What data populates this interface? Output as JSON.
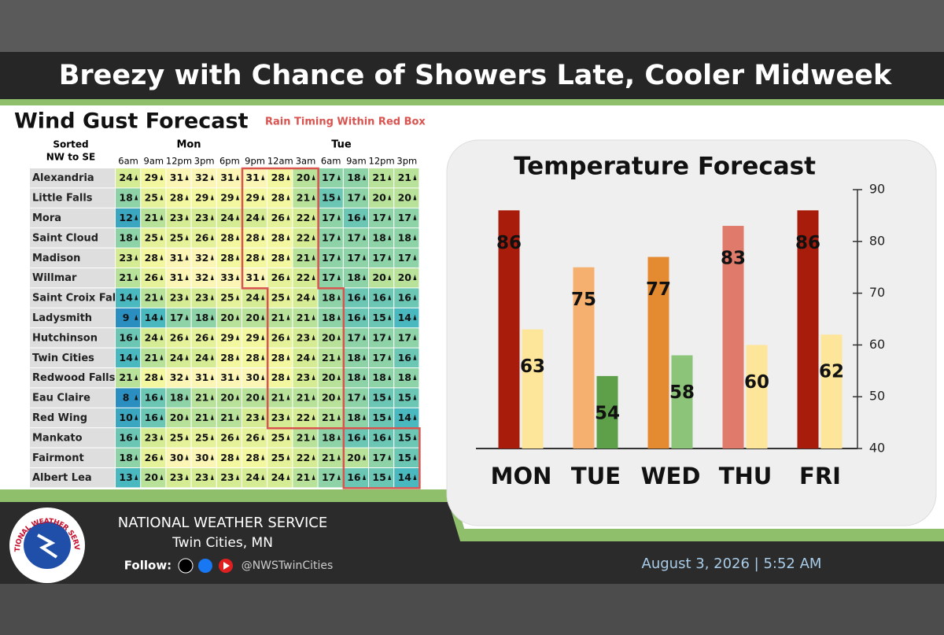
{
  "header": {
    "title": "Breezy with Chance of Showers Late, Cooler Midweek"
  },
  "wind_table": {
    "title": "Wind Gust Forecast",
    "note": "Rain Timing Within Red Box",
    "sort_label": [
      "Sorted",
      "NW to SE"
    ],
    "days": [
      "Mon",
      "Tue"
    ],
    "times": [
      "6am",
      "9am",
      "12pm",
      "3pm",
      "6pm",
      "9pm",
      "12am",
      "3am",
      "6am",
      "9am",
      "12pm",
      "3pm"
    ],
    "rows": [
      {
        "name": "Alexandria",
        "values": [
          24,
          29,
          31,
          32,
          31,
          31,
          28,
          20,
          17,
          18,
          21,
          21
        ]
      },
      {
        "name": "Little Falls",
        "values": [
          18,
          25,
          28,
          29,
          29,
          29,
          28,
          21,
          15,
          17,
          20,
          20
        ]
      },
      {
        "name": "Mora",
        "values": [
          12,
          21,
          23,
          23,
          24,
          24,
          26,
          22,
          17,
          16,
          17,
          17
        ]
      },
      {
        "name": "Saint Cloud",
        "values": [
          18,
          25,
          25,
          26,
          28,
          28,
          28,
          22,
          17,
          17,
          18,
          18
        ]
      },
      {
        "name": "Madison",
        "values": [
          23,
          28,
          31,
          32,
          28,
          28,
          28,
          21,
          17,
          17,
          17,
          17
        ]
      },
      {
        "name": "Willmar",
        "values": [
          21,
          26,
          31,
          32,
          33,
          31,
          26,
          22,
          17,
          18,
          20,
          20
        ]
      },
      {
        "name": "Saint Croix Falls",
        "values": [
          14,
          21,
          23,
          23,
          25,
          24,
          25,
          24,
          18,
          16,
          16,
          16
        ]
      },
      {
        "name": "Ladysmith",
        "values": [
          9,
          14,
          17,
          18,
          20,
          20,
          21,
          21,
          18,
          16,
          15,
          14
        ]
      },
      {
        "name": "Hutchinson",
        "values": [
          16,
          24,
          26,
          26,
          29,
          29,
          26,
          23,
          20,
          17,
          17,
          17
        ]
      },
      {
        "name": "Twin Cities",
        "values": [
          14,
          21,
          24,
          24,
          28,
          28,
          28,
          24,
          21,
          18,
          17,
          16
        ]
      },
      {
        "name": "Redwood Falls",
        "values": [
          21,
          28,
          32,
          31,
          31,
          30,
          28,
          23,
          20,
          18,
          18,
          18
        ]
      },
      {
        "name": "Eau Claire",
        "values": [
          8,
          16,
          18,
          21,
          20,
          20,
          21,
          21,
          20,
          17,
          15,
          15
        ]
      },
      {
        "name": "Red Wing",
        "values": [
          10,
          16,
          20,
          21,
          21,
          23,
          23,
          22,
          21,
          18,
          15,
          14
        ]
      },
      {
        "name": "Mankato",
        "values": [
          16,
          23,
          25,
          25,
          26,
          26,
          25,
          21,
          18,
          16,
          16,
          15
        ]
      },
      {
        "name": "Fairmont",
        "values": [
          18,
          26,
          30,
          30,
          28,
          28,
          25,
          22,
          21,
          20,
          17,
          15
        ]
      },
      {
        "name": "Albert Lea",
        "values": [
          13,
          20,
          23,
          23,
          23,
          24,
          24,
          21,
          17,
          16,
          15,
          14
        ]
      }
    ]
  },
  "chart_data": {
    "type": "bar",
    "title": "Temperature Forecast",
    "categories": [
      "MON",
      "TUE",
      "WED",
      "THU",
      "FRI"
    ],
    "series": [
      {
        "colors": [
          "#a81c0c",
          "#f5b070",
          "#e48a30",
          "#e07a6a",
          "#a81c0c"
        ],
        "values": [
          86,
          75,
          77,
          83,
          86
        ]
      },
      {
        "colors": [
          "#fde59a",
          "#5ea04a",
          "#8cc47a",
          "#fde59a",
          "#fde59a"
        ],
        "values": [
          63,
          54,
          58,
          60,
          62
        ]
      }
    ],
    "ylim": [
      40,
      90
    ],
    "yticks": [
      40,
      50,
      60,
      70,
      80,
      90
    ],
    "y_axis_side": "right"
  },
  "footer": {
    "logo_text": "NATIONAL WEATHER SERVICE",
    "org": "NATIONAL WEATHER SERVICE",
    "office": "Twin Cities, MN",
    "follow": "Follow:",
    "handle": "@NWSTwinCities",
    "timestamp": "August 3, 2026 | 5:52 AM"
  }
}
